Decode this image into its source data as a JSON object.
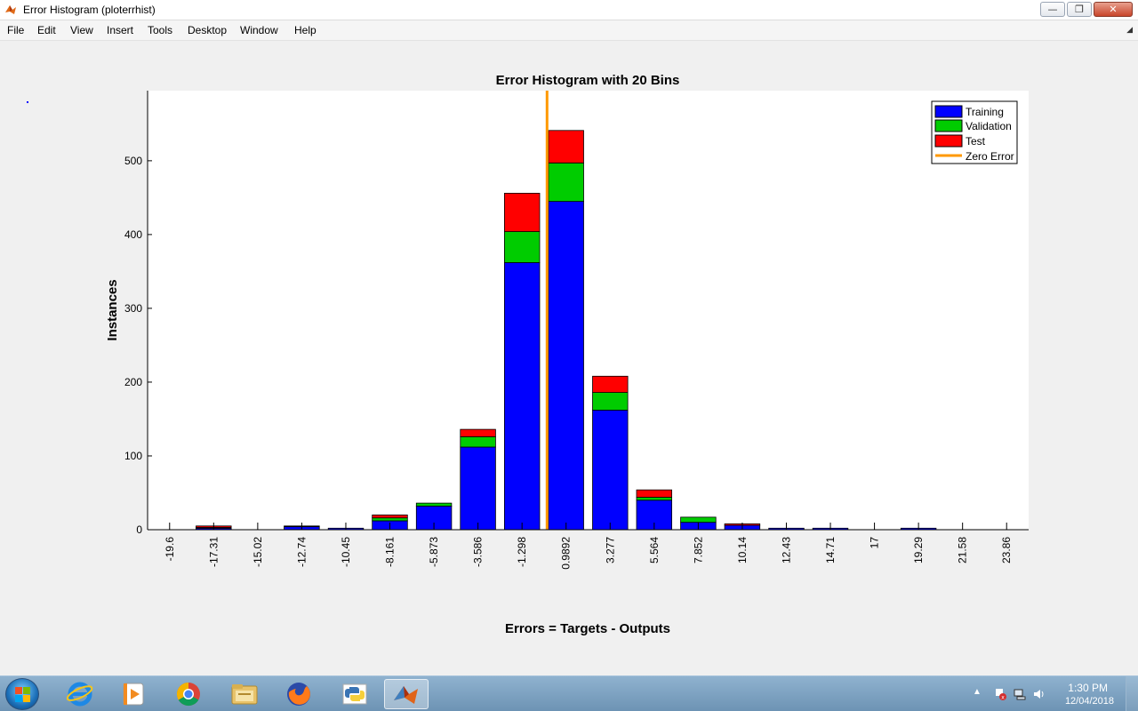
{
  "window": {
    "title": "Error Histogram (ploterrhist)",
    "app_icon": "matlab-icon",
    "controls": {
      "minimize": "minimize-icon",
      "restore": "restore-icon",
      "close": "close-icon"
    }
  },
  "menu": {
    "items": [
      "File",
      "Edit",
      "View",
      "Insert",
      "Tools",
      "Desktop",
      "Window",
      "Help"
    ]
  },
  "chart_data": {
    "type": "bar",
    "stacked": true,
    "title": "Error Histogram with 20 Bins",
    "xlabel": "Errors = Targets - Outputs",
    "ylabel": "Instances",
    "categories": [
      "-19.6",
      "-17.31",
      "-15.02",
      "-12.74",
      "-10.45",
      "-8.161",
      "-5.873",
      "-3.586",
      "-1.298",
      "0.9892",
      "3.277",
      "5.564",
      "7.852",
      "10.14",
      "12.43",
      "14.71",
      "17",
      "19.29",
      "21.58",
      "23.86"
    ],
    "series": [
      {
        "name": "Training",
        "color": "#0000ff",
        "values": [
          0,
          2,
          0,
          4,
          2,
          12,
          32,
          112,
          362,
          445,
          162,
          40,
          10,
          6,
          2,
          2,
          0,
          2,
          0,
          0
        ]
      },
      {
        "name": "Validation",
        "color": "#00cc00",
        "values": [
          0,
          1,
          0,
          1,
          0,
          4,
          4,
          14,
          42,
          52,
          24,
          4,
          7,
          0,
          0,
          0,
          0,
          0,
          0,
          0
        ]
      },
      {
        "name": "Test",
        "color": "#ff0000",
        "values": [
          0,
          2,
          0,
          0,
          0,
          4,
          0,
          10,
          52,
          44,
          22,
          10,
          0,
          2,
          0,
          0,
          0,
          0,
          0,
          0
        ]
      }
    ],
    "zero_error": {
      "name": "Zero Error",
      "color": "#ff9900",
      "x": 0
    },
    "yticks": [
      0,
      100,
      200,
      300,
      400,
      500
    ],
    "ylim": [
      0,
      595
    ],
    "grid": false,
    "legend_position": "top-right"
  },
  "taskbar": {
    "start_icon": "windows-start-icon",
    "apps": [
      "internet-explorer-icon",
      "media-player-icon",
      "chrome-icon",
      "file-explorer-icon",
      "firefox-icon",
      "python-icon",
      "matlab-icon"
    ],
    "active_app": "matlab-icon",
    "tray_icons": [
      "show-hidden-icons-arrow",
      "action-center-icon",
      "network-icon",
      "volume-icon"
    ],
    "clock": {
      "time": "1:30 PM",
      "date": "12/04/2018"
    }
  }
}
